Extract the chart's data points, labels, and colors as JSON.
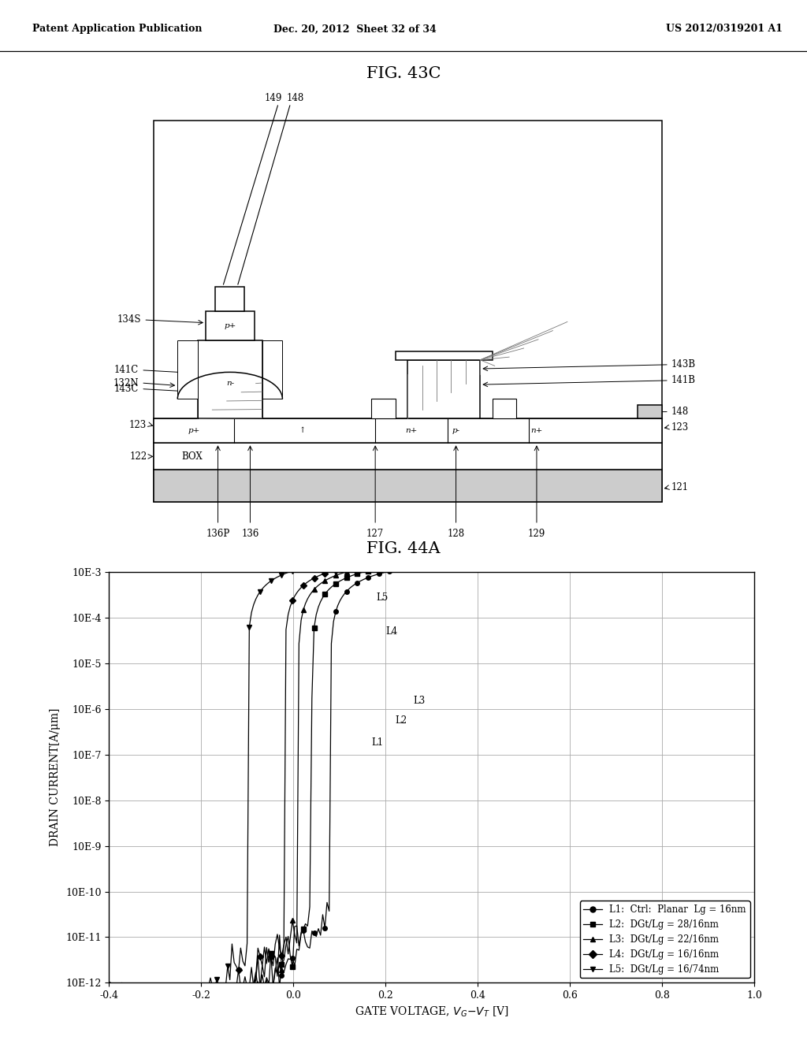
{
  "header_left": "Patent Application Publication",
  "header_mid": "Dec. 20, 2012  Sheet 32 of 34",
  "header_right": "US 2012/0319201 A1",
  "fig43c_title": "FIG. 43C",
  "fig44a_title": "FIG. 44A",
  "ylabel": "DRAIN CURRENT[A/μm]",
  "xmin": -0.4,
  "xmax": 1.0,
  "yticks_labels": [
    "10E-12",
    "10E-11",
    "10E-10",
    "10E-9",
    "10E-8",
    "10E-7",
    "10E-6",
    "10E-5",
    "10E-4",
    "10E-3"
  ],
  "yticks_values": [
    1e-12,
    1e-11,
    1e-10,
    1e-09,
    1e-08,
    1e-07,
    1e-06,
    1e-05,
    0.0001,
    0.001
  ],
  "xticks": [
    -0.4,
    -0.2,
    0.0,
    0.2,
    0.4,
    0.6,
    0.8,
    1.0
  ],
  "legend_entries": [
    "L1:  Ctrl:  Planar  Lg = 16nm",
    "L2:  DGt/Lg = 28/16nm",
    "L3:  DGt/Lg = 22/16nm",
    "L4:  DGt/Lg = 16/16nm",
    "L5:  DGt/Lg = 16/74nm"
  ],
  "bg_color": "#ffffff",
  "grid_color": "#aaaaaa"
}
